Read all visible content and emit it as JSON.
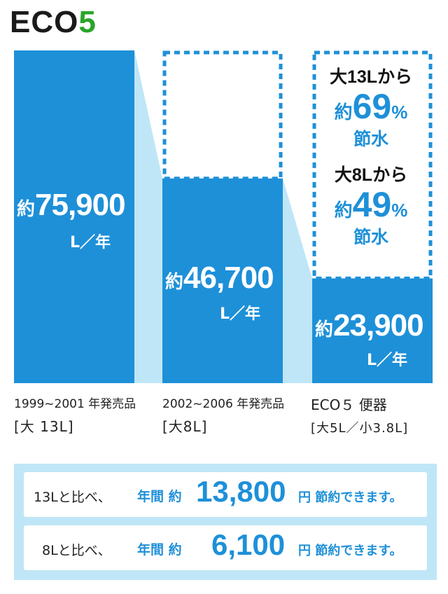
{
  "logo": {
    "eco": "ECO",
    "five": "5"
  },
  "colors": {
    "bar": "#1e90d8",
    "connector": "#bfe6f7",
    "accent_green": "#2aa52a",
    "text_blue": "#1e90d8"
  },
  "chart_data": {
    "type": "bar",
    "title": "",
    "unit": "L／年",
    "categories": [
      "1999~2001 年発売品 [大13L]",
      "2002~2006 年発売品 [大8L]",
      "ECO5 便器 [大5L／小3.8L]"
    ],
    "values": [
      75900,
      46700,
      23900
    ],
    "value_labels": [
      {
        "prefix": "約",
        "number": "75,900"
      },
      {
        "prefix": "約",
        "number": "46,700"
      },
      {
        "prefix": "約",
        "number": "23,900"
      }
    ],
    "category_labels": [
      {
        "line1": "1999~2001 年発売品",
        "line2": "[大 13L]"
      },
      {
        "line1": "2002~2006 年発売品",
        "line2": "[大8L]"
      },
      {
        "line1": "ECO５ 便器",
        "line2": "[大5L／小3.8L]"
      }
    ],
    "annotations": [
      {
        "from": "大13Lから",
        "prefix": "約",
        "percent": "69",
        "sign": "%",
        "word": "節水"
      },
      {
        "from": "大8Lから",
        "prefix": "約",
        "percent": "49",
        "sign": "%",
        "word": "節水"
      }
    ]
  },
  "summary": [
    {
      "compare": "13Lと比べ、",
      "label": "年間 約",
      "amount": "13,800",
      "suffix": "円 節約できます。"
    },
    {
      "compare": "8Lと比べ、",
      "label": "年間 約",
      "amount": "6,100",
      "suffix": "円 節約できます。"
    }
  ]
}
